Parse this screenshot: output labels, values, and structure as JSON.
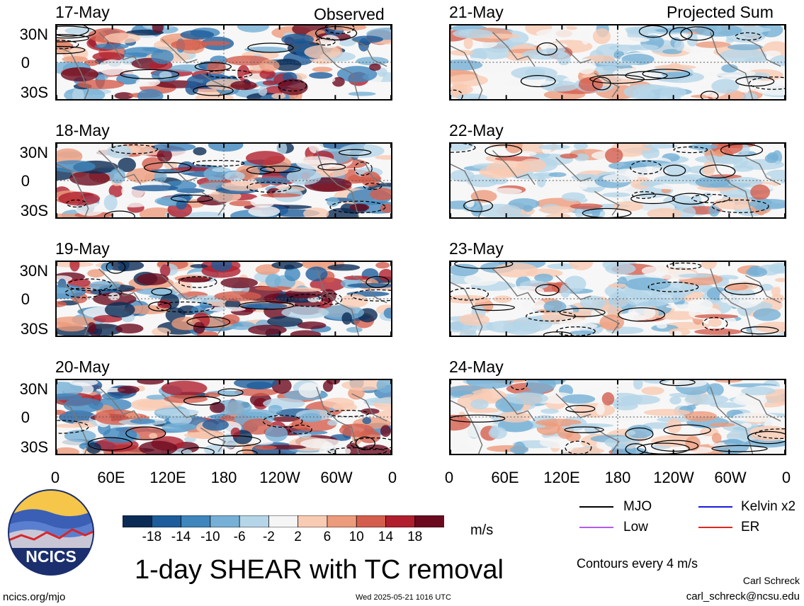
{
  "header": {
    "left_label": "Observed",
    "right_label": "Projected Sum"
  },
  "panels": [
    {
      "date": "17-May"
    },
    {
      "date": "18-May"
    },
    {
      "date": "19-May"
    },
    {
      "date": "20-May"
    },
    {
      "date": "21-May"
    },
    {
      "date": "22-May"
    },
    {
      "date": "23-May"
    },
    {
      "date": "24-May"
    }
  ],
  "chart_data": {
    "type": "heatmap",
    "title": "1-day SHEAR with TC removal",
    "variable": "SHEAR",
    "units": "m/s",
    "y_ticks": [
      "30N",
      "0",
      "30S"
    ],
    "x_ticks": [
      "0",
      "60E",
      "120E",
      "180",
      "120W",
      "60W",
      "0"
    ],
    "colorbar": {
      "levels": [
        "-18",
        "-14",
        "-10",
        "-6",
        "-2",
        "2",
        "6",
        "10",
        "14",
        "18"
      ],
      "colors": [
        "#0b2c55",
        "#1e5d9b",
        "#3f86bd",
        "#76b0d6",
        "#b5d6e8",
        "#f5f5f5",
        "#f9cbb3",
        "#ec9b7c",
        "#d45e4d",
        "#b01f2e",
        "#6b0a1f"
      ]
    },
    "contour_note": "Contours every 4 m/s",
    "legend": [
      {
        "name": "MJO",
        "color": "#000000"
      },
      {
        "name": "Kelvin x2",
        "color": "#1a1adf"
      },
      {
        "name": "Low",
        "color": "#b35cf0"
      },
      {
        "name": "ER",
        "color": "#e0281f"
      }
    ]
  },
  "footer": {
    "logo_text": "NCICS",
    "url": "ncics.org/mjo",
    "timestamp": "Wed 2025-05-21 1016 UTC",
    "author": "Carl Schreck",
    "email": "carl_schreck@ncsu.edu"
  }
}
